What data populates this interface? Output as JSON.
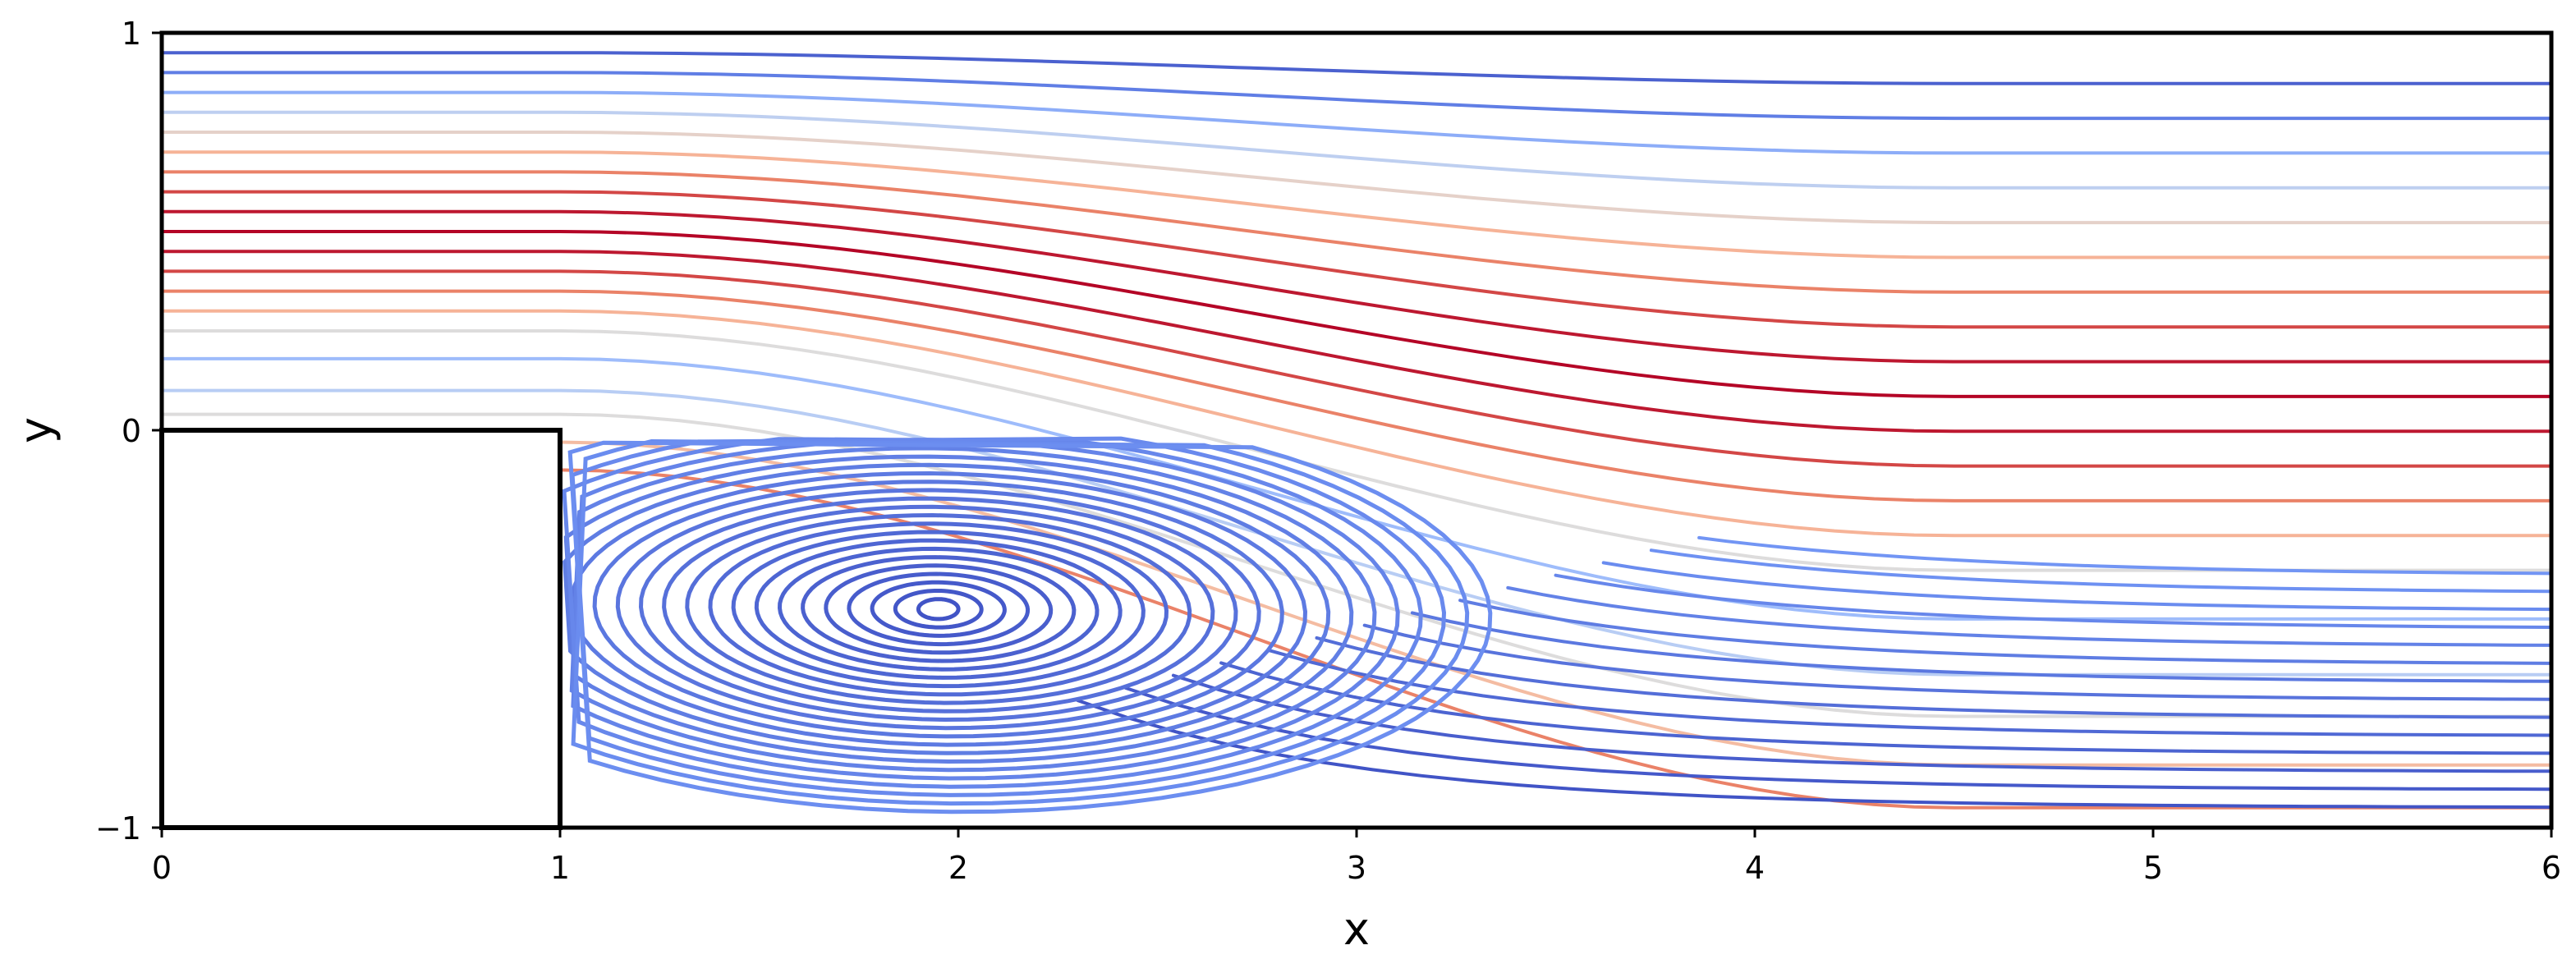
{
  "chart_data": {
    "type": "streamplot",
    "title": "",
    "xlabel": "x",
    "ylabel": "y",
    "xlim": [
      0,
      6
    ],
    "ylim": [
      -1,
      1
    ],
    "xticks": [
      "0",
      "1",
      "2",
      "3",
      "4",
      "5",
      "6"
    ],
    "yticks": [
      "−1",
      "0",
      "1"
    ],
    "grid": false,
    "legend": "none",
    "colormap": [
      "#3b4cc0",
      "#6f92f3",
      "#aac7fd",
      "#dddcdc",
      "#f7b89c",
      "#e7745b",
      "#b40426"
    ],
    "step_obstacle": {
      "x": [
        0,
        1
      ],
      "y": [
        -1,
        0
      ]
    },
    "recirculation_vortex": {
      "center": [
        1.95,
        -0.45
      ]
    },
    "freestream_rows": [
      {
        "y": -0.1,
        "speed": 0.8
      },
      {
        "y": -0.03,
        "speed": 0.65
      },
      {
        "y": 0.04,
        "speed": 0.5
      },
      {
        "y": 0.1,
        "speed": 0.38
      },
      {
        "y": 0.18,
        "speed": 0.3
      },
      {
        "y": 0.25,
        "speed": 0.5
      },
      {
        "y": 0.3,
        "speed": 0.68
      },
      {
        "y": 0.35,
        "speed": 0.8
      },
      {
        "y": 0.4,
        "speed": 0.9
      },
      {
        "y": 0.45,
        "speed": 0.97
      },
      {
        "y": 0.5,
        "speed": 1.0
      },
      {
        "y": 0.55,
        "speed": 0.97
      },
      {
        "y": 0.6,
        "speed": 0.9
      },
      {
        "y": 0.65,
        "speed": 0.8
      },
      {
        "y": 0.7,
        "speed": 0.68
      },
      {
        "y": 0.75,
        "speed": 0.55
      },
      {
        "y": 0.8,
        "speed": 0.4
      },
      {
        "y": 0.85,
        "speed": 0.25
      },
      {
        "y": 0.9,
        "speed": 0.12
      },
      {
        "y": 0.95,
        "speed": 0.05
      }
    ]
  }
}
